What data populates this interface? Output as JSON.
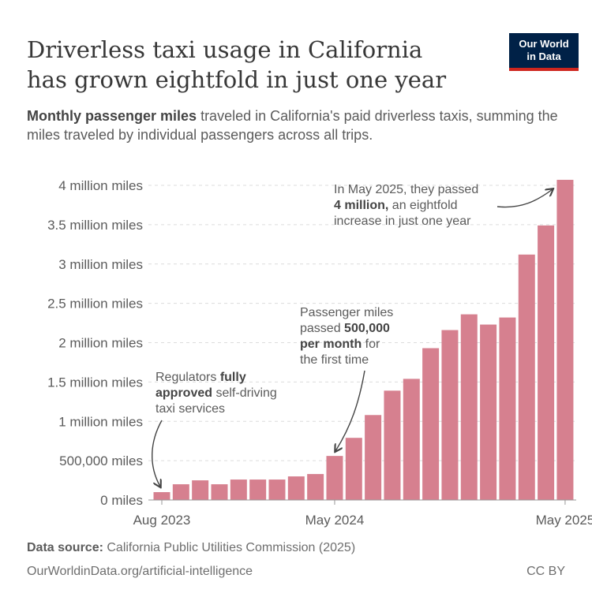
{
  "title": "Driverless taxi usage in California has grown eightfold in just one year",
  "subtitle_bold": "Monthly passenger miles",
  "subtitle_rest": " traveled in California's paid driverless taxis, summing the miles traveled by individual passengers across all trips.",
  "logo": {
    "line1": "Our World",
    "line2": "in Data",
    "bg": "#002147",
    "accent": "#ce261e"
  },
  "chart_data": {
    "type": "bar",
    "categories": [
      "Aug 2023",
      "Sep 2023",
      "Oct 2023",
      "Nov 2023",
      "Dec 2023",
      "Jan 2024",
      "Feb 2024",
      "Mar 2024",
      "Apr 2024",
      "May 2024",
      "Jun 2024",
      "Jul 2024",
      "Aug 2024",
      "Sep 2024",
      "Oct 2024",
      "Nov 2024",
      "Dec 2024",
      "Jan 2025",
      "Feb 2025",
      "Mar 2025",
      "Apr 2025",
      "May 2025"
    ],
    "values": [
      100000,
      200000,
      250000,
      200000,
      260000,
      260000,
      260000,
      300000,
      330000,
      560000,
      790000,
      1080000,
      1390000,
      1540000,
      1930000,
      2160000,
      2360000,
      2230000,
      2320000,
      3120000,
      3490000,
      4070000
    ],
    "bar_color": "#d6808f",
    "ylim": [
      0,
      4000000
    ],
    "yticks": [
      0,
      500000,
      1000000,
      1500000,
      2000000,
      2500000,
      3000000,
      3500000,
      4000000
    ],
    "ytick_labels": [
      "0 miles",
      "500,000 miles",
      "1 million miles",
      "1.5 million miles",
      "2 million miles",
      "2.5 million miles",
      "3 million miles",
      "3.5 million miles",
      "4 million miles"
    ],
    "xtick_labels": [
      {
        "index": 0,
        "label": "Aug 2023"
      },
      {
        "index": 9,
        "label": "May 2024"
      },
      {
        "index": 21,
        "label": "May 2025"
      }
    ],
    "grid": true,
    "annotations": [
      {
        "lines": [
          [
            "Regulators ",
            ""
          ],
          [
            "fully",
            "b"
          ]
        ],
        "l2": [
          [
            "approved",
            "b"
          ],
          [
            " self-driving",
            ""
          ]
        ],
        "l3": [
          [
            "taxi services",
            ""
          ]
        ]
      },
      {
        "l1": [
          [
            "Passenger miles",
            ""
          ]
        ],
        "l2": [
          [
            "passed ",
            ""
          ],
          [
            "500,000",
            "b"
          ]
        ],
        "l3": [
          [
            "per month",
            "b"
          ],
          [
            " for",
            ""
          ]
        ],
        "l4": [
          [
            "the first time",
            ""
          ]
        ]
      },
      {
        "l1": [
          [
            "In May 2025, they passed",
            ""
          ]
        ],
        "l2": [
          [
            "4 million,",
            "b"
          ],
          [
            " an eightfold",
            ""
          ]
        ],
        "l3": [
          [
            "increase in just one year",
            ""
          ]
        ]
      }
    ]
  },
  "footer": {
    "source_label": "Data source:",
    "source": " California Public Utilities Commission (2025)",
    "url": "OurWorldinData.org/artificial-intelligence",
    "license": "CC BY"
  }
}
